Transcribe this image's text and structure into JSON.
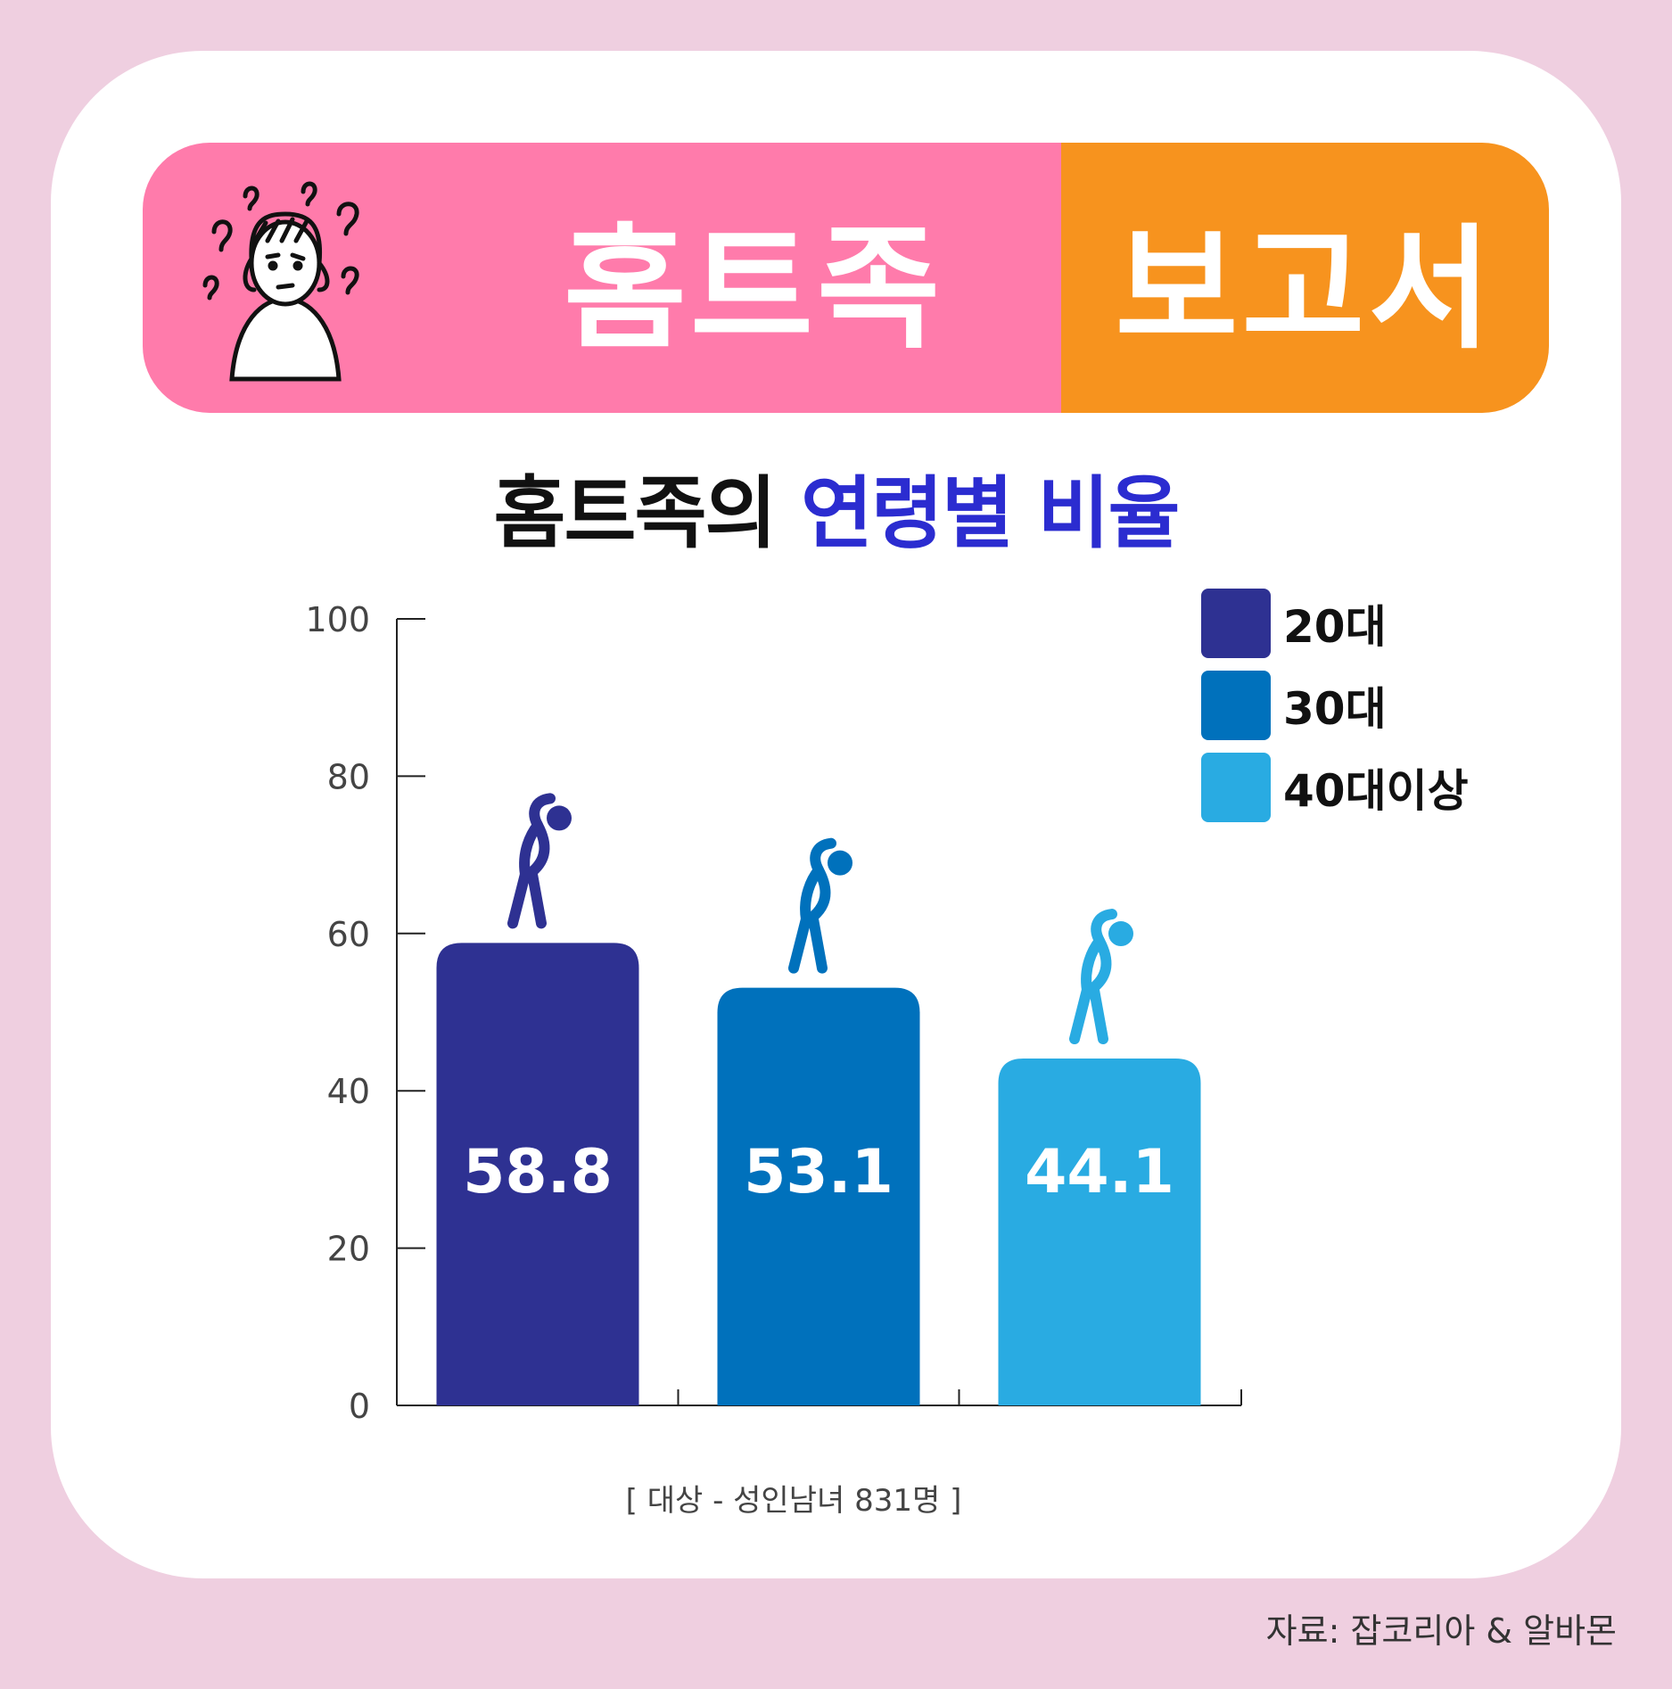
{
  "banner": {
    "title": "홈트족",
    "subtitle": "보고서"
  },
  "heading": {
    "part1": "홈트족의 ",
    "part2": "연령별 비율"
  },
  "colors": {
    "accent_pink": "#ff7bab",
    "accent_orange": "#f7931e",
    "highlight": "#2b2cd0"
  },
  "chart_data": {
    "type": "bar",
    "categories": [
      "20대",
      "30대",
      "40대이상"
    ],
    "values": [
      58.8,
      53.1,
      44.1
    ],
    "value_labels": [
      "58.8",
      "53.1",
      "44.1"
    ],
    "colors": [
      "#2e3192",
      "#0071bc",
      "#29abe2"
    ],
    "ylim": [
      0,
      100
    ],
    "yticks": [
      0,
      20,
      40,
      60,
      80,
      100
    ],
    "legend": [
      "20대",
      "30대",
      "40대이상"
    ],
    "legend_position": "top-right",
    "grid": false
  },
  "footnote": "[ 대상 - 성인남녀 831명 ]",
  "source": "자료: 잡코리아 & 알바몬"
}
